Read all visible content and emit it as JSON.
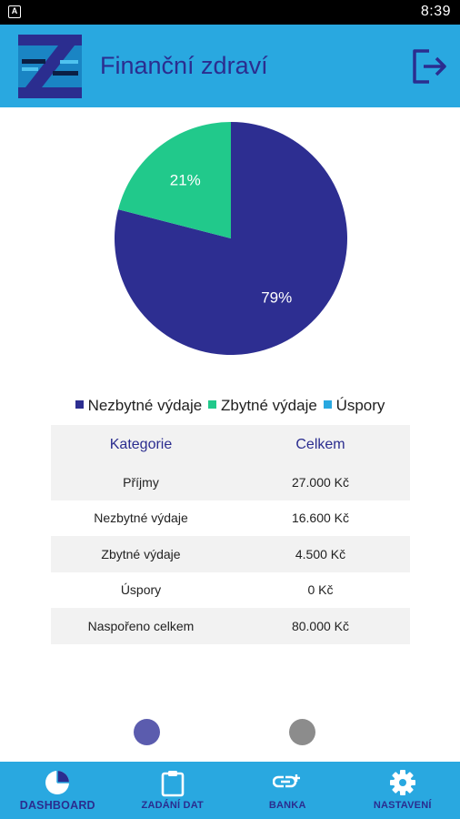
{
  "status_bar": {
    "notification_icon": "A",
    "time": "8:39"
  },
  "header": {
    "title": "Finanční zdraví",
    "logo_icon": "z-logo-icon",
    "logout_icon": "logout-icon"
  },
  "chart_data": {
    "type": "pie",
    "categories": [
      "Nezbytné výdaje",
      "Zbytné výdaje",
      "Úspory"
    ],
    "values": [
      79,
      21,
      0
    ],
    "labels": [
      "79%",
      "21%",
      ""
    ],
    "colors": [
      "#2d2e91",
      "#21c98b",
      "#29a8e0"
    ],
    "legend_placement": "bottom"
  },
  "table": {
    "headers": [
      "Kategorie",
      "Celkem"
    ],
    "rows": [
      [
        "Příjmy",
        "27.000 Kč"
      ],
      [
        "Nezbytné výdaje",
        "16.600 Kč"
      ],
      [
        "Zbytné výdaje",
        "4.500 Kč"
      ],
      [
        "Úspory",
        "0 Kč"
      ],
      [
        "Naspořeno celkem",
        "80.000 Kč"
      ]
    ]
  },
  "page_indicator": {
    "colors": [
      "#5b5cae",
      "#8c8c8c"
    ]
  },
  "nav": {
    "items": [
      {
        "label": "DASHBOARD",
        "icon": "pie-chart-icon"
      },
      {
        "label": "ZADÁNÍ DAT",
        "icon": "clipboard-icon"
      },
      {
        "label": "BANKA",
        "icon": "bank-link-icon"
      },
      {
        "label": "NASTAVENÍ",
        "icon": "gear-icon"
      }
    ]
  },
  "colors": {
    "primary": "#29a8e0",
    "dark_blue": "#2b2d8f"
  }
}
